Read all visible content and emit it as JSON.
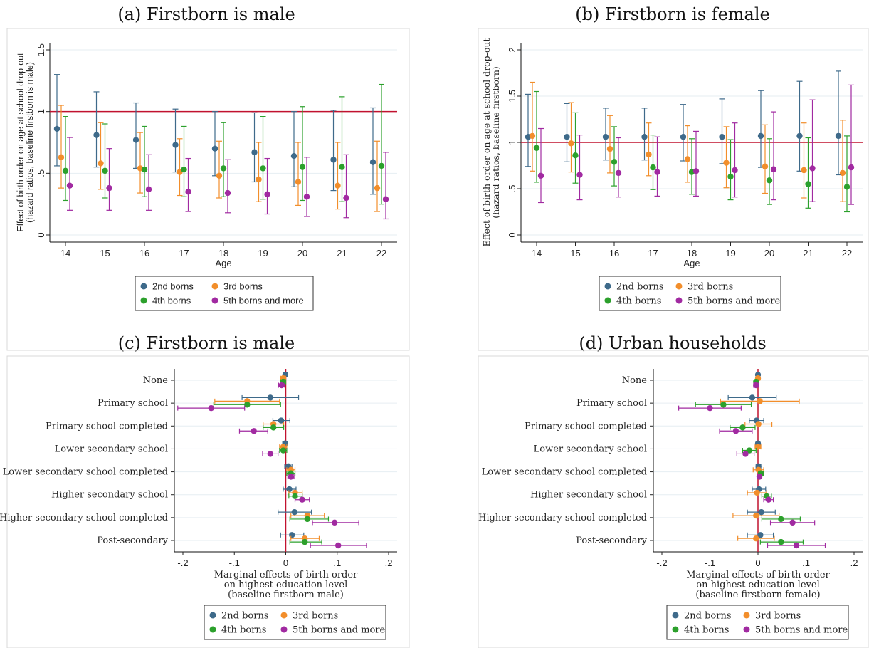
{
  "colors": {
    "series": [
      "#3e6a8a",
      "#f28e2b",
      "#2ca02c",
      "#a12aa1"
    ],
    "refline": "#c1122f",
    "grid": "#e6eef2",
    "frame": "#111111"
  },
  "chart_data": [
    {
      "id": "a",
      "type": "scatter",
      "title": "(a) Firstborn is male",
      "xlabel": "Age",
      "ylabel_lines": [
        "Effect of birth order on age at school drop-out",
        "(hazard ratios, baseline firstborn is male)"
      ],
      "orientation": "vertical",
      "categories": [
        "14",
        "15",
        "16",
        "17",
        "18",
        "19",
        "20",
        "21",
        "22"
      ],
      "ylim": [
        0,
        1.5
      ],
      "yticks": [
        0,
        0.5,
        1,
        1.5
      ],
      "ytick_labels": [
        "0",
        ".5",
        "1",
        "1.5"
      ],
      "reference_line": 1,
      "grid": true,
      "legend_position": "bottom",
      "legend": [
        "2nd borns",
        "3rd borns",
        "4th borns",
        "5th borns and more"
      ],
      "series": [
        {
          "name": "2nd borns",
          "values": [
            0.86,
            0.81,
            0.77,
            0.73,
            0.7,
            0.67,
            0.64,
            0.61,
            0.59
          ],
          "low": [
            0.56,
            0.55,
            0.54,
            0.51,
            0.48,
            0.43,
            0.39,
            0.36,
            0.33
          ],
          "high": [
            1.3,
            1.16,
            1.07,
            1.02,
            1.0,
            0.99,
            1.0,
            1.01,
            1.03
          ]
        },
        {
          "name": "3rd borns",
          "values": [
            0.63,
            0.58,
            0.54,
            0.51,
            0.48,
            0.45,
            0.43,
            0.4,
            0.38
          ],
          "low": [
            0.38,
            0.37,
            0.34,
            0.32,
            0.3,
            0.27,
            0.24,
            0.21,
            0.19
          ],
          "high": [
            1.05,
            0.91,
            0.83,
            0.78,
            0.76,
            0.75,
            0.75,
            0.75,
            0.76
          ]
        },
        {
          "name": "4th borns",
          "values": [
            0.52,
            0.52,
            0.53,
            0.53,
            0.54,
            0.54,
            0.55,
            0.55,
            0.56
          ],
          "low": [
            0.28,
            0.3,
            0.31,
            0.31,
            0.31,
            0.29,
            0.28,
            0.27,
            0.25
          ],
          "high": [
            0.96,
            0.9,
            0.88,
            0.88,
            0.91,
            0.96,
            1.04,
            1.12,
            1.22
          ]
        },
        {
          "name": "5th borns and more",
          "values": [
            0.4,
            0.38,
            0.37,
            0.35,
            0.34,
            0.33,
            0.31,
            0.3,
            0.29
          ],
          "low": [
            0.2,
            0.2,
            0.2,
            0.19,
            0.18,
            0.17,
            0.15,
            0.14,
            0.13
          ],
          "high": [
            0.79,
            0.7,
            0.65,
            0.62,
            0.61,
            0.62,
            0.63,
            0.65,
            0.67
          ]
        }
      ]
    },
    {
      "id": "b",
      "type": "scatter",
      "title": "(b) Firstborn is female",
      "xlabel": "Age",
      "ylabel_lines": [
        "Effect of birth order on age at school drop-out",
        "(hazard ratios, baseline firstborn)"
      ],
      "orientation": "vertical",
      "categories": [
        "14",
        "15",
        "16",
        "17",
        "18",
        "19",
        "20",
        "21",
        "22"
      ],
      "ylim": [
        0,
        2
      ],
      "yticks": [
        0,
        0.5,
        1,
        1.5,
        2
      ],
      "ytick_labels": [
        "0",
        ".5",
        "1",
        "1.5",
        "2"
      ],
      "reference_line": 1,
      "grid": true,
      "legend_position": "bottom",
      "legend": [
        "2nd borns",
        "3rd borns",
        "4th borns",
        "5th borns and more"
      ],
      "series": [
        {
          "name": "2nd borns",
          "values": [
            1.06,
            1.06,
            1.06,
            1.06,
            1.06,
            1.06,
            1.07,
            1.07,
            1.07
          ],
          "low": [
            0.74,
            0.79,
            0.81,
            0.81,
            0.8,
            0.77,
            0.73,
            0.69,
            0.65
          ],
          "high": [
            1.52,
            1.42,
            1.37,
            1.37,
            1.41,
            1.47,
            1.56,
            1.66,
            1.77
          ]
        },
        {
          "name": "3rd borns",
          "values": [
            1.07,
            0.99,
            0.93,
            0.87,
            0.82,
            0.78,
            0.74,
            0.7,
            0.67
          ],
          "low": [
            0.69,
            0.68,
            0.67,
            0.64,
            0.57,
            0.51,
            0.45,
            0.4,
            0.36
          ],
          "high": [
            1.65,
            1.43,
            1.29,
            1.21,
            1.18,
            1.17,
            1.19,
            1.21,
            1.24
          ]
        },
        {
          "name": "4th borns",
          "values": [
            0.94,
            0.86,
            0.79,
            0.73,
            0.68,
            0.63,
            0.59,
            0.55,
            0.52
          ],
          "low": [
            0.57,
            0.56,
            0.53,
            0.49,
            0.44,
            0.38,
            0.33,
            0.29,
            0.25
          ],
          "high": [
            1.55,
            1.32,
            1.17,
            1.08,
            1.04,
            1.03,
            1.04,
            1.05,
            1.07
          ]
        },
        {
          "name": "5th borns and more",
          "values": [
            0.64,
            0.65,
            0.67,
            0.68,
            0.69,
            0.7,
            0.71,
            0.72,
            0.73
          ],
          "low": [
            0.35,
            0.38,
            0.41,
            0.42,
            0.42,
            0.41,
            0.38,
            0.36,
            0.33
          ],
          "high": [
            1.15,
            1.08,
            1.05,
            1.06,
            1.12,
            1.21,
            1.33,
            1.46,
            1.62
          ]
        }
      ]
    },
    {
      "id": "c",
      "type": "scatter",
      "title": "(c) Firstborn is male",
      "xlabel_lines": [
        "Marginal effects of birth order",
        "on highest education level",
        "(baseline firstborn male)"
      ],
      "orientation": "horizontal",
      "categories": [
        "None",
        "Primary school",
        "Primary school completed",
        "Lower secondary school",
        "Lower secondary school completed",
        "Higher secondary school",
        "Higher secondary school completed",
        "Post-secondary"
      ],
      "xlim": [
        -0.2,
        0.2
      ],
      "xticks": [
        -0.2,
        -0.1,
        0,
        0.1,
        0.2
      ],
      "xtick_labels": [
        "-.2",
        "-.1",
        "0",
        ".1",
        ".2"
      ],
      "reference_line": 0,
      "grid": true,
      "legend_position": "bottom",
      "legend": [
        "2nd borns",
        "3rd borns",
        "4th borns",
        "5th borns and more"
      ],
      "series": [
        {
          "name": "2nd borns",
          "values": [
            -0.001,
            -0.03,
            -0.009,
            -0.001,
            0.005,
            0.007,
            0.017,
            0.012
          ],
          "low": [
            -0.005,
            -0.085,
            -0.025,
            -0.006,
            -0.002,
            -0.005,
            -0.015,
            -0.01
          ],
          "high": [
            0.003,
            0.025,
            0.008,
            0.004,
            0.012,
            0.02,
            0.05,
            0.035
          ]
        },
        {
          "name": "3rd borns",
          "values": [
            -0.005,
            -0.075,
            -0.024,
            -0.005,
            0.01,
            0.018,
            0.042,
            0.037
          ],
          "low": [
            -0.01,
            -0.138,
            -0.044,
            -0.012,
            0.002,
            0.006,
            0.01,
            0.01
          ],
          "high": [
            0.0,
            -0.012,
            -0.004,
            0.002,
            0.018,
            0.032,
            0.075,
            0.065
          ]
        },
        {
          "name": "4th borns",
          "values": [
            -0.005,
            -0.075,
            -0.024,
            -0.005,
            0.01,
            0.018,
            0.042,
            0.037
          ],
          "low": [
            -0.01,
            -0.14,
            -0.044,
            -0.012,
            0.002,
            0.006,
            0.008,
            0.008
          ],
          "high": [
            0.0,
            -0.01,
            -0.004,
            0.002,
            0.018,
            0.032,
            0.083,
            0.07
          ]
        },
        {
          "name": "5th borns and more",
          "values": [
            -0.008,
            -0.145,
            -0.062,
            -0.03,
            0.01,
            0.032,
            0.095,
            0.102
          ],
          "low": [
            -0.014,
            -0.21,
            -0.09,
            -0.045,
            0.004,
            0.018,
            0.052,
            0.048
          ],
          "high": [
            -0.002,
            -0.08,
            -0.035,
            -0.015,
            0.016,
            0.046,
            0.142,
            0.157
          ]
        }
      ]
    },
    {
      "id": "d",
      "type": "scatter",
      "title": "(d) Urban households",
      "xlabel_lines": [
        "Marginal effects of birth order",
        "on highest education level",
        "(baseline firstborn female)"
      ],
      "orientation": "horizontal",
      "categories": [
        "None",
        "Primary school",
        "Primary school completed",
        "Lower secondary school",
        "Lower secondary school completed",
        "Higher secondary school",
        "Higher secondary school completed",
        "Post-secondary"
      ],
      "xlim": [
        -0.2,
        0.2
      ],
      "xticks": [
        -0.2,
        -0.1,
        0,
        0.1,
        0.2
      ],
      "xtick_labels": [
        "-.2",
        "-.1",
        "0",
        ".1",
        ".2"
      ],
      "reference_line": 0,
      "grid": true,
      "legend_position": "bottom",
      "legend": [
        "2nd borns",
        "3rd borns",
        "4th borns",
        "5th borns and more"
      ],
      "series": [
        {
          "name": "2nd borns",
          "values": [
            0.0,
            -0.012,
            -0.003,
            0.0,
            0.001,
            0.002,
            0.007,
            0.005
          ],
          "low": [
            -0.003,
            -0.062,
            -0.018,
            -0.004,
            -0.004,
            -0.012,
            -0.022,
            -0.022
          ],
          "high": [
            0.003,
            0.038,
            0.012,
            0.004,
            0.006,
            0.016,
            0.036,
            0.032
          ]
        },
        {
          "name": "3rd borns",
          "values": [
            0.0,
            0.004,
            0.001,
            0.0,
            0.001,
            -0.002,
            -0.004,
            -0.004
          ],
          "low": [
            -0.004,
            -0.078,
            -0.027,
            -0.006,
            -0.01,
            -0.022,
            -0.052,
            -0.042
          ],
          "high": [
            0.004,
            0.086,
            0.029,
            0.006,
            0.012,
            0.018,
            0.044,
            0.034
          ]
        },
        {
          "name": "4th borns",
          "values": [
            -0.004,
            -0.072,
            -0.032,
            -0.018,
            0.006,
            0.018,
            0.048,
            0.048
          ],
          "low": [
            -0.008,
            -0.13,
            -0.058,
            -0.032,
            0.001,
            0.008,
            0.008,
            0.005
          ],
          "high": [
            0.0,
            -0.014,
            -0.006,
            -0.004,
            0.011,
            0.028,
            0.088,
            0.094
          ]
        },
        {
          "name": "5th borns and more",
          "values": [
            -0.004,
            -0.1,
            -0.046,
            -0.026,
            0.003,
            0.022,
            0.072,
            0.08
          ],
          "low": [
            -0.009,
            -0.165,
            -0.08,
            -0.044,
            -0.002,
            0.012,
            0.026,
            0.02
          ],
          "high": [
            0.001,
            -0.035,
            -0.012,
            -0.008,
            0.008,
            0.032,
            0.118,
            0.14
          ]
        }
      ]
    }
  ]
}
